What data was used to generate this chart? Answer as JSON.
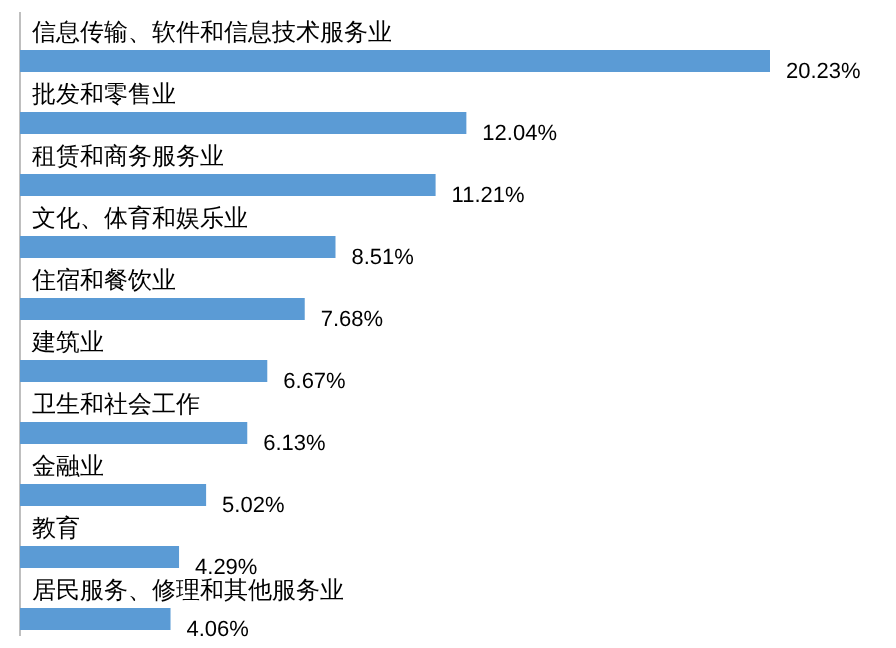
{
  "chart_data": {
    "type": "bar",
    "orientation": "horizontal",
    "color": "#5b9bd5",
    "categories": [
      "信息传输、软件和信息技术服务业",
      "批发和零售业",
      "租赁和商务服务业",
      "文化、体育和娱乐业",
      "住宿和餐饮业",
      "建筑业",
      "卫生和社会工作",
      "金融业",
      "教育",
      "居民服务、修理和其他服务业"
    ],
    "values": [
      20.23,
      12.04,
      11.21,
      8.51,
      7.68,
      6.67,
      6.13,
      5.02,
      4.29,
      4.06
    ],
    "value_labels": [
      "20.23%",
      "12.04%",
      "11.21%",
      "8.51%",
      "7.68%",
      "6.67%",
      "6.13%",
      "5.02%",
      "4.29%",
      "4.06%"
    ]
  }
}
